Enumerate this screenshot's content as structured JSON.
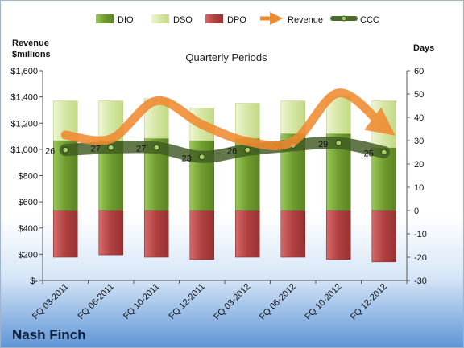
{
  "chart_data": {
    "type": "bar",
    "title": "Quarterly Periods",
    "company": "Nash Finch",
    "y_left_label": [
      "Revenue",
      "$millions"
    ],
    "y_right_label": "Days",
    "ylim_left": [
      0,
      1600
    ],
    "ylim_right": [
      -30,
      60
    ],
    "y_left_ticks": [
      "$-",
      "$200",
      "$400",
      "$600",
      "$800",
      "$1,000",
      "$1,200",
      "$1,400",
      "$1,600"
    ],
    "y_left_tick_values": [
      0,
      200,
      400,
      600,
      800,
      1000,
      1200,
      1400,
      1600
    ],
    "y_right_ticks": [
      -30,
      -20,
      -10,
      0,
      10,
      20,
      30,
      40,
      50,
      60
    ],
    "categories": [
      "FQ 03-2011",
      "FQ 06-2011",
      "FQ 10-2011",
      "FQ 12-2011",
      "FQ 03-2012",
      "FQ 06-2012",
      "FQ 10-2012",
      "FQ 12-2012"
    ],
    "legend": [
      "DIO",
      "DSO",
      "DPO",
      "Revenue",
      "CCC"
    ],
    "series": [
      {
        "name": "DIO",
        "axis": "right",
        "values": [
          30,
          30,
          31,
          30,
          31,
          33,
          33,
          27
        ]
      },
      {
        "name": "DSO",
        "axis": "right",
        "values": [
          17,
          17,
          17,
          14,
          15,
          14,
          16,
          20
        ]
      },
      {
        "name": "DPO",
        "axis": "right",
        "values": [
          -20,
          -19,
          -20,
          -21,
          -20,
          -20,
          -21,
          -22
        ]
      },
      {
        "name": "Revenue",
        "axis": "left",
        "values": [
          1110,
          1080,
          1370,
          1190,
          1060,
          1060,
          1430,
          1170
        ]
      },
      {
        "name": "CCC",
        "axis": "right",
        "values": [
          26,
          27,
          27,
          23,
          26,
          28,
          29,
          25
        ]
      }
    ],
    "ccc_labels": [
      "26",
      "27",
      "27",
      "23",
      "26",
      "28",
      "29",
      "25"
    ],
    "colors": {
      "DIO": "#77a33a",
      "DSO": "#d5e6a5",
      "DPO": "#b84545",
      "Revenue": "#f08a30",
      "CCC": "#4e6a2a"
    }
  }
}
